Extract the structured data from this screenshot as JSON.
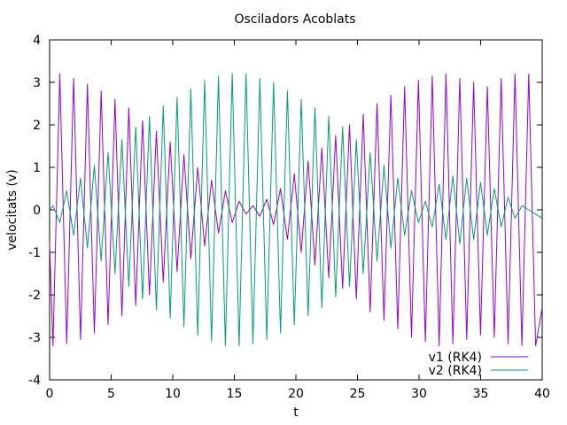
{
  "chart_data": {
    "type": "line",
    "title": "Osciladors Acoblats",
    "xlabel": "t",
    "ylabel": "velocitats (v)",
    "xlim": [
      0,
      40
    ],
    "ylim": [
      -4,
      4
    ],
    "xticks": [
      0,
      5,
      10,
      15,
      20,
      25,
      30,
      35,
      40
    ],
    "yticks": [
      -4,
      -3,
      -2,
      -1,
      0,
      1,
      2,
      3,
      4
    ],
    "grid": false,
    "legend_position": "bottom-right",
    "series": [
      {
        "name": "v1 (RK4)",
        "color": "#9400d3",
        "x": [
          0.0,
          0.27,
          0.83,
          1.39,
          1.95,
          2.51,
          3.07,
          3.63,
          4.19,
          4.75,
          5.31,
          5.87,
          6.43,
          6.99,
          7.55,
          8.11,
          8.67,
          9.23,
          9.79,
          10.35,
          10.91,
          11.47,
          12.03,
          12.59,
          13.15,
          13.71,
          14.27,
          14.83,
          15.39,
          15.95,
          16.51,
          17.07,
          17.63,
          18.19,
          18.75,
          19.31,
          19.87,
          20.43,
          20.99,
          21.55,
          22.11,
          22.67,
          23.23,
          23.79,
          24.35,
          24.91,
          25.47,
          26.03,
          26.59,
          27.15,
          27.71,
          28.27,
          28.83,
          29.39,
          29.95,
          30.51,
          31.07,
          31.63,
          32.19,
          32.75,
          33.31,
          33.87,
          34.43,
          34.99,
          35.55,
          36.11,
          36.67,
          37.23,
          37.79,
          38.35,
          38.91,
          39.47,
          40.0
        ],
        "y": [
          -0.8,
          -3.2,
          3.2,
          -3.15,
          3.1,
          -3.05,
          2.95,
          -2.9,
          2.8,
          -2.7,
          2.6,
          -2.5,
          2.4,
          -2.25,
          2.1,
          -2.0,
          1.85,
          -1.7,
          1.6,
          -1.45,
          1.3,
          -1.15,
          1.0,
          -0.85,
          0.7,
          -0.55,
          0.45,
          -0.3,
          0.2,
          -0.1,
          0.1,
          -0.15,
          0.25,
          -0.35,
          0.5,
          -0.7,
          0.85,
          -1.0,
          1.15,
          -1.3,
          1.45,
          -1.6,
          1.75,
          -1.85,
          2.0,
          -2.1,
          2.25,
          -2.4,
          2.5,
          -2.6,
          2.7,
          -2.8,
          2.9,
          -3.0,
          3.05,
          -3.1,
          3.15,
          -3.2,
          3.2,
          -3.15,
          3.1,
          -3.05,
          3.0,
          -2.95,
          2.9,
          -3.0,
          3.1,
          -3.15,
          3.2,
          -3.2,
          3.2,
          -3.2,
          -2.3
        ]
      },
      {
        "name": "v2 (RK4)",
        "color": "#009e73",
        "x": [
          0.0,
          0.27,
          0.83,
          1.39,
          1.95,
          2.51,
          3.07,
          3.63,
          4.19,
          4.75,
          5.31,
          5.87,
          6.43,
          6.99,
          7.55,
          8.11,
          8.67,
          9.23,
          9.79,
          10.35,
          10.91,
          11.47,
          12.03,
          12.59,
          13.15,
          13.71,
          14.27,
          14.83,
          15.39,
          15.95,
          16.51,
          17.07,
          17.63,
          18.19,
          18.75,
          19.31,
          19.87,
          20.43,
          20.99,
          21.55,
          22.11,
          22.67,
          23.23,
          23.79,
          24.35,
          24.91,
          25.47,
          26.03,
          26.59,
          27.15,
          27.71,
          28.27,
          28.83,
          29.39,
          29.95,
          30.51,
          31.07,
          31.63,
          32.19,
          32.75,
          33.31,
          33.87,
          34.43,
          34.99,
          35.55,
          36.11,
          36.67,
          37.23,
          37.79,
          38.35,
          38.91,
          39.47,
          40.0
        ],
        "y": [
          0.0,
          0.1,
          -0.3,
          0.45,
          -0.6,
          0.75,
          -0.9,
          1.05,
          -1.2,
          1.35,
          -1.5,
          1.65,
          -1.8,
          1.95,
          -2.1,
          2.2,
          -2.35,
          2.45,
          -2.55,
          2.65,
          -2.75,
          2.85,
          -2.95,
          3.05,
          -3.1,
          3.15,
          -3.2,
          3.2,
          -3.2,
          3.2,
          -3.15,
          3.1,
          -3.05,
          3.0,
          -2.9,
          2.8,
          -2.7,
          2.6,
          -2.5,
          2.4,
          -2.3,
          2.2,
          -2.05,
          1.95,
          -1.8,
          1.65,
          -1.5,
          1.35,
          -1.2,
          1.05,
          -0.9,
          0.75,
          -0.6,
          0.45,
          -0.3,
          0.2,
          -0.4,
          0.6,
          -0.7,
          0.8,
          -0.8,
          0.75,
          -0.7,
          0.65,
          -0.6,
          0.5,
          -0.4,
          0.3,
          -0.2,
          0.1,
          0.0,
          -0.1,
          -0.2
        ]
      }
    ]
  }
}
